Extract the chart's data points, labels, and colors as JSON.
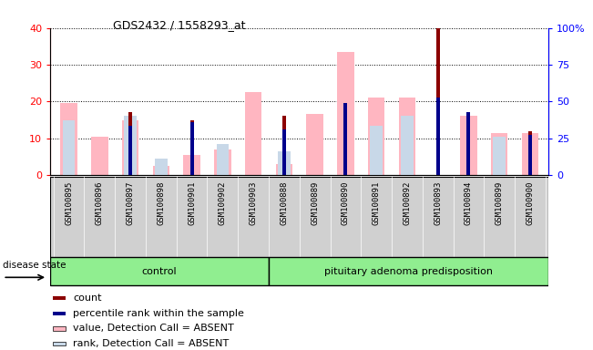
{
  "title": "GDS2432 / 1558293_at",
  "samples": [
    "GSM100895",
    "GSM100896",
    "GSM100897",
    "GSM100898",
    "GSM100901",
    "GSM100902",
    "GSM100903",
    "GSM100888",
    "GSM100889",
    "GSM100890",
    "GSM100891",
    "GSM100892",
    "GSM100893",
    "GSM100894",
    "GSM100899",
    "GSM100900"
  ],
  "control_count": 7,
  "group1_label": "control",
  "group2_label": "pituitary adenoma predisposition",
  "count_values": [
    0,
    0,
    17,
    0,
    15,
    0,
    0,
    16,
    0,
    0,
    0,
    0,
    40,
    0,
    0,
    12
  ],
  "percentile_values": [
    0,
    0,
    13.5,
    0,
    14.5,
    0,
    0,
    12.5,
    0,
    19.5,
    0,
    0,
    21,
    17,
    0,
    11
  ],
  "value_absent": [
    19.5,
    10.5,
    15,
    2.5,
    5.5,
    7,
    22.5,
    3,
    16.5,
    33.5,
    21,
    21,
    0,
    16,
    11.5,
    11.5
  ],
  "rank_absent": [
    15,
    0,
    16,
    4.5,
    0,
    8.5,
    0,
    6.5,
    0,
    0,
    13.5,
    16,
    0,
    0,
    10.5,
    0
  ],
  "ylim": [
    0,
    40
  ],
  "yticks": [
    0,
    10,
    20,
    30,
    40
  ],
  "ytick_labels_right": [
    "0",
    "25",
    "50",
    "75",
    "100%"
  ],
  "color_count": "#8B0000",
  "color_percentile": "#00008B",
  "color_value_absent": "#FFB6C1",
  "color_rank_absent": "#C8D8E8",
  "bg_plot": "#FFFFFF",
  "legend_items": [
    {
      "label": "count",
      "color": "#8B0000"
    },
    {
      "label": "percentile rank within the sample",
      "color": "#00008B"
    },
    {
      "label": "value, Detection Call = ABSENT",
      "color": "#FFB6C1"
    },
    {
      "label": "rank, Detection Call = ABSENT",
      "color": "#C8D8E8"
    }
  ]
}
